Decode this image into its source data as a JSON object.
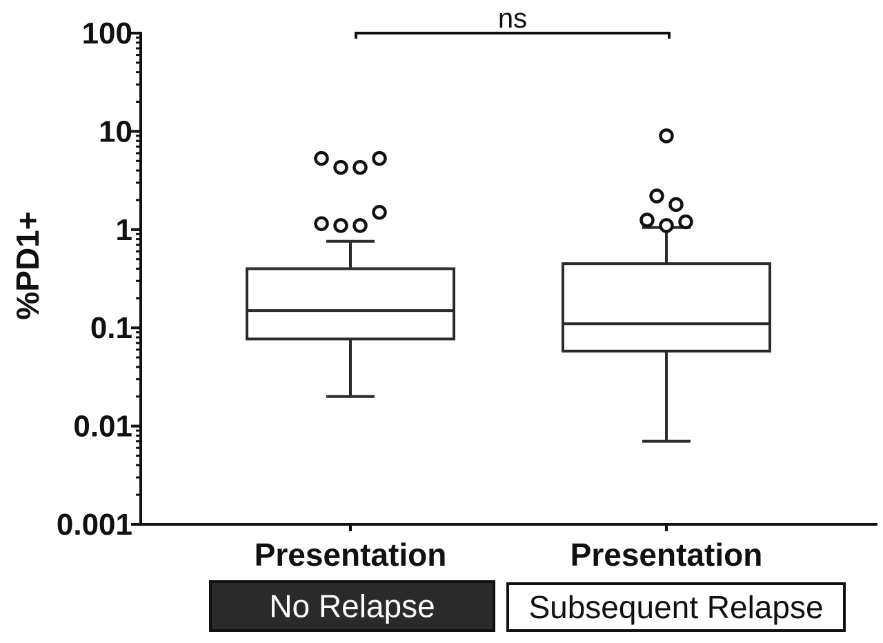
{
  "chart_data": {
    "type": "box",
    "ylabel": "%PD1+",
    "xlabel": "",
    "yscale": "log",
    "ylim": [
      0.001,
      100
    ],
    "ytick_labels": [
      "0.001",
      "0.01",
      "0.1",
      "1",
      "10",
      "100"
    ],
    "ytick_values": [
      0.001,
      0.01,
      0.1,
      1,
      10,
      100
    ],
    "categories": [
      "Presentation",
      "Presentation"
    ],
    "groups": [
      {
        "label": "No Relapse",
        "fill": "#2a2a2a",
        "text_color": "#ffffff"
      },
      {
        "label": "Subsequent Relapse",
        "fill": "#ffffff",
        "text_color": "#111111"
      }
    ],
    "series": [
      {
        "category": "Presentation",
        "group": "No Relapse",
        "whisker_low": 0.02,
        "q1": 0.077,
        "median": 0.15,
        "q3": 0.4,
        "whisker_high": 0.76,
        "outliers": [
          5.3,
          4.3,
          4.3,
          5.3,
          1.15,
          1.1,
          1.1,
          1.5
        ]
      },
      {
        "category": "Presentation",
        "group": "Subsequent Relapse",
        "whisker_low": 0.007,
        "q1": 0.058,
        "median": 0.11,
        "q3": 0.45,
        "whisker_high": 1.05,
        "outliers": [
          9.0,
          2.2,
          1.8,
          1.25,
          1.1,
          1.2
        ]
      }
    ],
    "significance": {
      "label": "ns",
      "between": [
        0,
        1
      ],
      "y": 100
    },
    "grid": false,
    "legend": "none"
  },
  "colors": {
    "axis": "#111111",
    "box_stroke": "#2b2b2b",
    "dark_group": "#2a2a2a",
    "light_group": "#ffffff"
  }
}
